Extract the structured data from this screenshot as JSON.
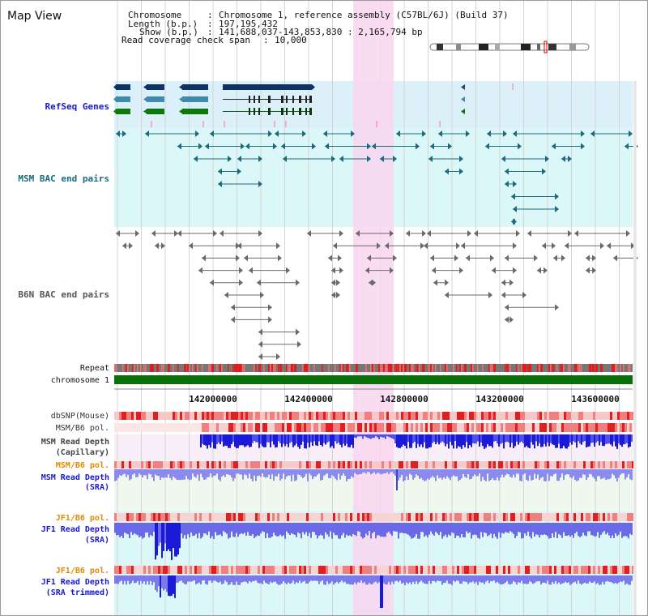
{
  "view": {
    "title": "Map View",
    "info": [
      {
        "key": "Chromosome",
        "value": "Chromosome 1, reference assembly (C57BL/6J) (Build 37)"
      },
      {
        "key": "Length (b.p.)",
        "value": "197,195,432"
      },
      {
        "key": "Show (b.p.)",
        "value": "141,688,037-143,853,830 : 2,165,794 bp"
      },
      {
        "key": "Read coverage check span",
        "value": "10,000"
      }
    ]
  },
  "tracks": {
    "refseq": "RefSeq Genes",
    "msm_bac": "MSM BAC end pairs",
    "b6n_bac": "B6N BAC end pairs",
    "repeat": "Repeat",
    "chromosome": "chromosome 1",
    "dbsnp": "dbSNP(Mouse)",
    "msm_b6_pol_1": "MSM/B6 pol.",
    "msm_depth_cap_1": "MSM Read Depth",
    "msm_depth_cap_2": "(Capillary)",
    "msm_b6_pol_2": "MSM/B6 pol.",
    "msm_depth_sra_1": "MSM Read Depth",
    "msm_depth_sra_2": "(SRA)",
    "jf1_b6_pol_1": "JF1/B6 pol.",
    "jf1_depth_sra_1": "JF1 Read Depth",
    "jf1_depth_sra_2": "(SRA)",
    "jf1_b6_pol_2": "JF1/B6 pol.",
    "jf1_depth_trim_1": "JF1 Read Depth",
    "jf1_depth_trim_2": "(SRA trimmed)"
  },
  "axis": {
    "ticks": [
      "142000000",
      "142400000",
      "142800000",
      "143200000",
      "143600000"
    ]
  },
  "colors": {
    "highlight": "#f9d6f0",
    "refseq_bg": "#dcf0fa",
    "msm_bg": "#dcf7f7",
    "gene_dark": "#0d3366",
    "gene_mid": "#3f8bb0",
    "gene_green": "#0a7a0a",
    "msm_line": "#1a6a80",
    "b6n_line": "#707070",
    "track_label_blue": "#1a1acc",
    "track_label_teal": "#1a6a80",
    "track_label_orange": "#e08a00",
    "depth_blue": "#2a2ae6"
  }
}
